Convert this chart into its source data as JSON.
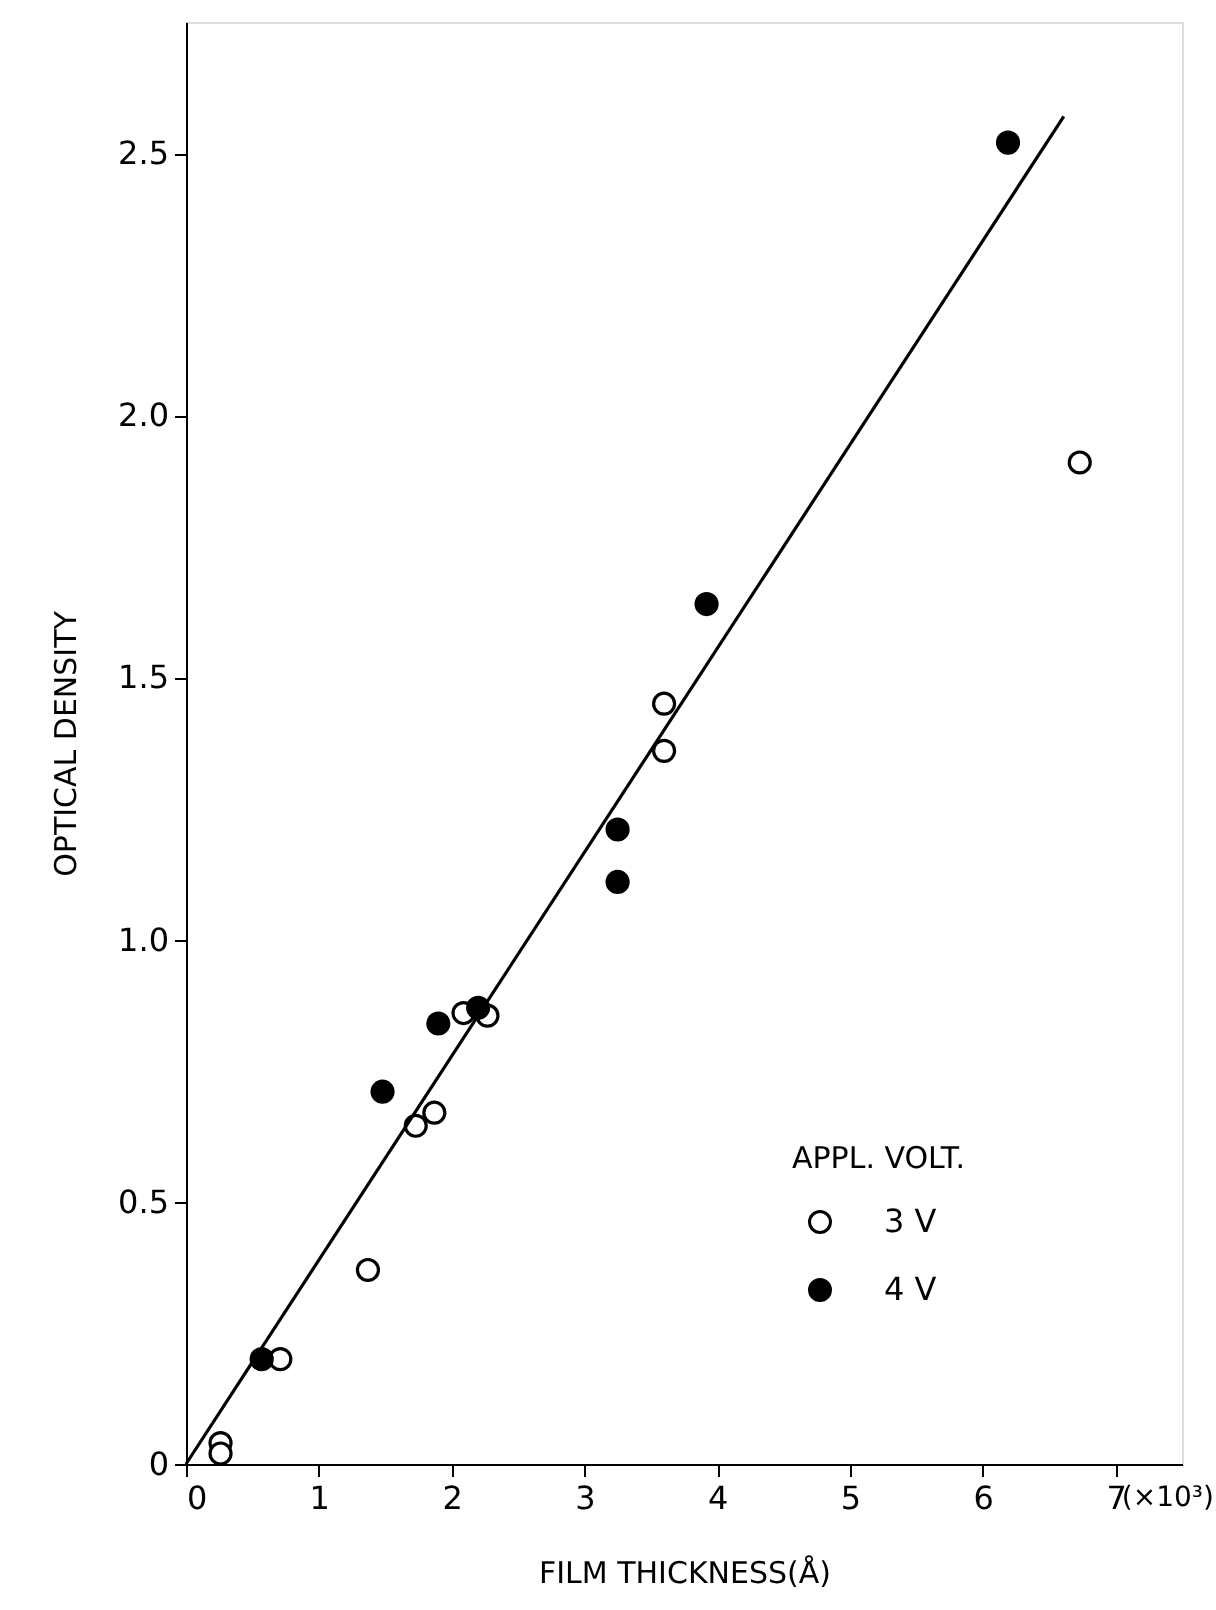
{
  "chart_data": {
    "type": "scatter",
    "xlabel": "FILM THICKNESS(Å)",
    "ylabel": "OPTICAL DENSITY",
    "legend_title": "APPL. VOLT.",
    "xlim": [
      0,
      7.5
    ],
    "ylim": [
      0,
      2.75
    ],
    "xticks": [
      0,
      1,
      2,
      3,
      4,
      5,
      6,
      7
    ],
    "yticks": [
      0,
      0.5,
      {
        "value": 1,
        "label": "1.0"
      },
      1.5,
      {
        "value": 2,
        "label": "2.0"
      },
      2.5
    ],
    "annotations": [
      "(×10³)"
    ],
    "grid": false,
    "legend": "bottom right",
    "series": [
      {
        "name": "3 V",
        "color": "#ffffff",
        "marker": "circle",
        "x": [
          0.26,
          0.26,
          0.71,
          1.37,
          1.73,
          1.87,
          2.09,
          2.27,
          3.6,
          3.6,
          6.73
        ],
        "values": [
          0.04,
          0.02,
          0.2,
          0.37,
          0.645,
          0.67,
          0.86,
          0.855,
          1.36,
          1.45,
          1.91
        ]
      },
      {
        "name": "4 V",
        "color": "#000000",
        "marker": "circle",
        "x": [
          0.57,
          1.48,
          1.9,
          2.2,
          3.25,
          3.25,
          3.92,
          6.19
        ],
        "values": [
          0.2,
          0.71,
          0.84,
          0.87,
          1.11,
          1.21,
          1.64,
          2.52
        ]
      },
      {
        "type": "line",
        "color": "#000000",
        "marker": "none",
        "line_style": "solid",
        "x": [
          0,
          6.61
        ],
        "values": [
          0,
          2.57
        ]
      }
    ]
  }
}
